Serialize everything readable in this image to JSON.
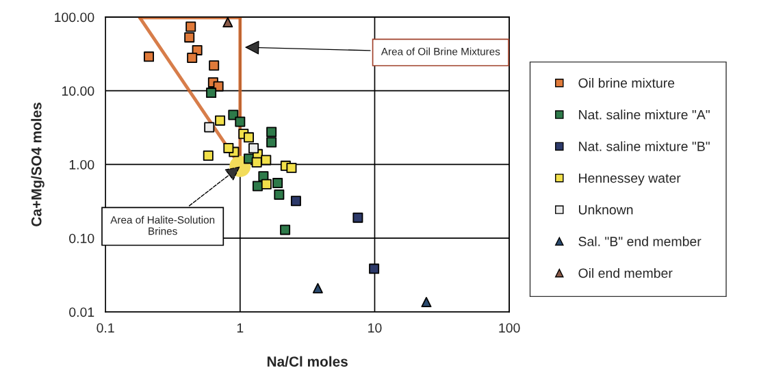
{
  "chart_data": {
    "type": "scatter",
    "xlabel": "Na/Cl moles",
    "ylabel": "Ca+Mg/SO4 moles",
    "log": "xy",
    "grid": true,
    "legend": "right",
    "marker": "square",
    "xlim": [
      0.1,
      100
    ],
    "xticks": [
      0.1,
      1,
      10,
      100
    ],
    "ylim": [
      0.01,
      100
    ],
    "yticks": [
      {
        "value": 0.01,
        "label": "0.01"
      },
      {
        "value": 0.1,
        "label": "0.10"
      },
      {
        "value": 1,
        "label": "1.00"
      },
      {
        "value": 10,
        "label": "10.00"
      },
      {
        "value": 100,
        "label": "100.00"
      }
    ],
    "series": [
      {
        "type": "line",
        "marker": "none",
        "color": "#d0662a",
        "x": [
          0.18,
          0.92,
          1,
          1
        ],
        "values": [
          98,
          1.2,
          1.25,
          98
        ]
      },
      {
        "type": "line",
        "marker": "none",
        "color": "#d0662a",
        "x": [
          0.18,
          1
        ],
        "values": [
          98,
          98
        ]
      },
      {
        "type": "scatter",
        "marker": "circle",
        "color": "#f2dc5a",
        "x": [
          1.0
        ],
        "values": [
          0.94
        ]
      },
      {
        "name": "Oil brine mixture",
        "color": "#e07a3a",
        "x": [
          0.43,
          0.42,
          0.48,
          0.44,
          0.21,
          0.64,
          0.63,
          0.69
        ],
        "values": [
          74,
          53,
          35.5,
          28,
          29,
          22,
          13,
          11.5
        ]
      },
      {
        "name": "Nat. saline mixture \"A\"",
        "color": "#2e7a4a",
        "x": [
          0.61,
          0.89,
          1.0,
          1.71,
          1.71,
          1.16,
          1.49,
          1.35,
          1.9,
          1.95,
          2.16
        ],
        "values": [
          9.4,
          4.7,
          3.8,
          2.76,
          2.0,
          1.2,
          0.69,
          0.51,
          0.56,
          0.39,
          0.13
        ]
      },
      {
        "name": "Nat. saline mixture \"B\"",
        "color": "#2d3a6a",
        "x": [
          2.6,
          7.5,
          9.9
        ],
        "values": [
          0.32,
          0.19,
          0.0385
        ]
      },
      {
        "name": "Hennessey water",
        "color": "#f2e04a",
        "x": [
          0.71,
          1.06,
          1.16,
          0.58,
          0.9,
          0.82,
          1.35,
          1.33,
          1.56,
          2.18,
          2.41,
          1.57
        ],
        "values": [
          3.95,
          2.6,
          2.33,
          1.32,
          1.48,
          1.67,
          1.38,
          1.07,
          1.15,
          0.96,
          0.9,
          0.54
        ]
      },
      {
        "name": "Unknown",
        "color": "#ececec",
        "x": [
          0.59,
          1.26
        ],
        "values": [
          3.2,
          1.66
        ]
      },
      {
        "name": "Sal. \"B\" end member",
        "marker": "triangle",
        "color": "#2a4a6e",
        "x": [
          3.78,
          24.2
        ],
        "values": [
          0.021,
          0.0136
        ]
      },
      {
        "name": "Oil end member",
        "marker": "triangle",
        "color": "#8a5a48",
        "x": [
          0.81
        ],
        "values": [
          85
        ]
      }
    ],
    "annotations": [
      {
        "text": "Area of Oil Brine Mixtures",
        "x": 1.05,
        "y": 39
      },
      {
        "text": "Area of Halite-Solution\nBrines",
        "x": 1.0,
        "y": 0.94
      }
    ]
  }
}
